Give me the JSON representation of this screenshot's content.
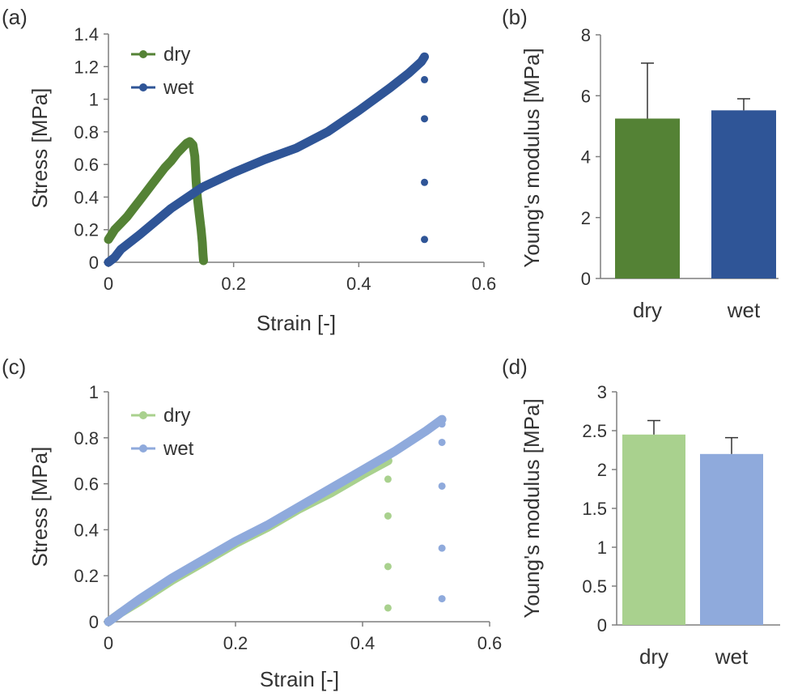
{
  "colors": {
    "dark_green": "#548235",
    "dark_blue": "#2F5597",
    "light_green": "#A9D18E",
    "light_blue": "#8FAADC",
    "axis": "#7f7f7f"
  },
  "chart_data": [
    {
      "id": "a",
      "type": "scatter",
      "panel_label": "(a)",
      "xlabel": "Strain [-]",
      "ylabel": "Stress [MPa]",
      "xlim": [
        0,
        0.6
      ],
      "ylim": [
        0,
        1.4
      ],
      "xticks": [
        "0",
        "0.2",
        "0.4",
        "0.6"
      ],
      "yticks": [
        "0",
        "0.2",
        "0.4",
        "0.6",
        "0.8",
        "1",
        "1.2",
        "1.4"
      ],
      "xtick_values": [
        0,
        0.2,
        0.4,
        0.6
      ],
      "ytick_values": [
        0,
        0.2,
        0.4,
        0.6,
        0.8,
        1,
        1.2,
        1.4
      ],
      "grid": false,
      "legend_position": "top-left",
      "series": [
        {
          "name": "dry",
          "color": "#548235",
          "points": [
            [
              0,
              0.14
            ],
            [
              0.005,
              0.17
            ],
            [
              0.01,
              0.2
            ],
            [
              0.02,
              0.24
            ],
            [
              0.03,
              0.28
            ],
            [
              0.04,
              0.33
            ],
            [
              0.05,
              0.38
            ],
            [
              0.06,
              0.43
            ],
            [
              0.07,
              0.48
            ],
            [
              0.08,
              0.53
            ],
            [
              0.09,
              0.58
            ],
            [
              0.1,
              0.62
            ],
            [
              0.11,
              0.67
            ],
            [
              0.12,
              0.71
            ],
            [
              0.125,
              0.73
            ],
            [
              0.13,
              0.74
            ],
            [
              0.135,
              0.72
            ],
            [
              0.138,
              0.65
            ],
            [
              0.14,
              0.5
            ],
            [
              0.142,
              0.4
            ],
            [
              0.145,
              0.3
            ],
            [
              0.148,
              0.2
            ],
            [
              0.15,
              0.12
            ],
            [
              0.151,
              0.05
            ],
            [
              0.152,
              0.01
            ]
          ]
        },
        {
          "name": "wet",
          "color": "#2F5597",
          "points": [
            [
              0,
              0
            ],
            [
              0.01,
              0.03
            ],
            [
              0.02,
              0.08
            ],
            [
              0.05,
              0.17
            ],
            [
              0.1,
              0.33
            ],
            [
              0.15,
              0.46
            ],
            [
              0.2,
              0.55
            ],
            [
              0.25,
              0.63
            ],
            [
              0.3,
              0.7
            ],
            [
              0.35,
              0.8
            ],
            [
              0.4,
              0.93
            ],
            [
              0.45,
              1.07
            ],
            [
              0.48,
              1.16
            ],
            [
              0.5,
              1.23
            ],
            [
              0.505,
              1.26
            ],
            [
              0.505,
              1.12
            ],
            [
              0.505,
              0.88
            ],
            [
              0.505,
              0.49
            ],
            [
              0.505,
              0.14
            ]
          ]
        }
      ]
    },
    {
      "id": "b",
      "type": "bar",
      "panel_label": "(b)",
      "xlabel": "",
      "ylabel": "Young's modulus [MPa]",
      "ylim": [
        0,
        8
      ],
      "yticks": [
        "0",
        "2",
        "4",
        "6",
        "8"
      ],
      "ytick_values": [
        0,
        2,
        4,
        6,
        8
      ],
      "categories": [
        "dry",
        "wet"
      ],
      "values": [
        5.25,
        5.52
      ],
      "errors": [
        1.82,
        0.38
      ],
      "colors": [
        "#548235",
        "#2F5597"
      ]
    },
    {
      "id": "c",
      "type": "scatter",
      "panel_label": "(c)",
      "xlabel": "Strain [-]",
      "ylabel": "Stress [MPa]",
      "xlim": [
        0,
        0.6
      ],
      "ylim": [
        0,
        1
      ],
      "xticks": [
        "0",
        "0.2",
        "0.4",
        "0.6"
      ],
      "yticks": [
        "0",
        "0.2",
        "0.4",
        "0.6",
        "0.8",
        "1"
      ],
      "xtick_values": [
        0,
        0.2,
        0.4,
        0.6
      ],
      "ytick_values": [
        0,
        0.2,
        0.4,
        0.6,
        0.8,
        1
      ],
      "grid": false,
      "legend_position": "top-left",
      "series": [
        {
          "name": "dry",
          "color": "#A9D18E",
          "points": [
            [
              0,
              0
            ],
            [
              0.02,
              0.04
            ],
            [
              0.05,
              0.09
            ],
            [
              0.1,
              0.18
            ],
            [
              0.15,
              0.26
            ],
            [
              0.2,
              0.34
            ],
            [
              0.25,
              0.41
            ],
            [
              0.3,
              0.49
            ],
            [
              0.35,
              0.56
            ],
            [
              0.4,
              0.64
            ],
            [
              0.42,
              0.67
            ],
            [
              0.44,
              0.7
            ],
            [
              0.44,
              0.62
            ],
            [
              0.44,
              0.46
            ],
            [
              0.44,
              0.24
            ],
            [
              0.44,
              0.06
            ]
          ]
        },
        {
          "name": "wet",
          "color": "#8FAADC",
          "points": [
            [
              0,
              0
            ],
            [
              0.02,
              0.04
            ],
            [
              0.05,
              0.1
            ],
            [
              0.1,
              0.19
            ],
            [
              0.15,
              0.27
            ],
            [
              0.2,
              0.35
            ],
            [
              0.25,
              0.42
            ],
            [
              0.3,
              0.5
            ],
            [
              0.35,
              0.58
            ],
            [
              0.4,
              0.66
            ],
            [
              0.45,
              0.74
            ],
            [
              0.5,
              0.83
            ],
            [
              0.52,
              0.87
            ],
            [
              0.525,
              0.88
            ],
            [
              0.525,
              0.86
            ],
            [
              0.525,
              0.78
            ],
            [
              0.525,
              0.59
            ],
            [
              0.525,
              0.32
            ],
            [
              0.525,
              0.1
            ]
          ]
        }
      ]
    },
    {
      "id": "d",
      "type": "bar",
      "panel_label": "(d)",
      "xlabel": "",
      "ylabel": "Young's modulus [MPa]",
      "ylim": [
        0,
        3
      ],
      "yticks": [
        "0",
        "0.5",
        "1",
        "1.5",
        "2",
        "2.5",
        "3"
      ],
      "ytick_values": [
        0,
        0.5,
        1,
        1.5,
        2,
        2.5,
        3
      ],
      "categories": [
        "dry",
        "wet"
      ],
      "values": [
        2.45,
        2.2
      ],
      "errors": [
        0.18,
        0.21
      ],
      "colors": [
        "#A9D18E",
        "#8FAADC"
      ]
    }
  ]
}
